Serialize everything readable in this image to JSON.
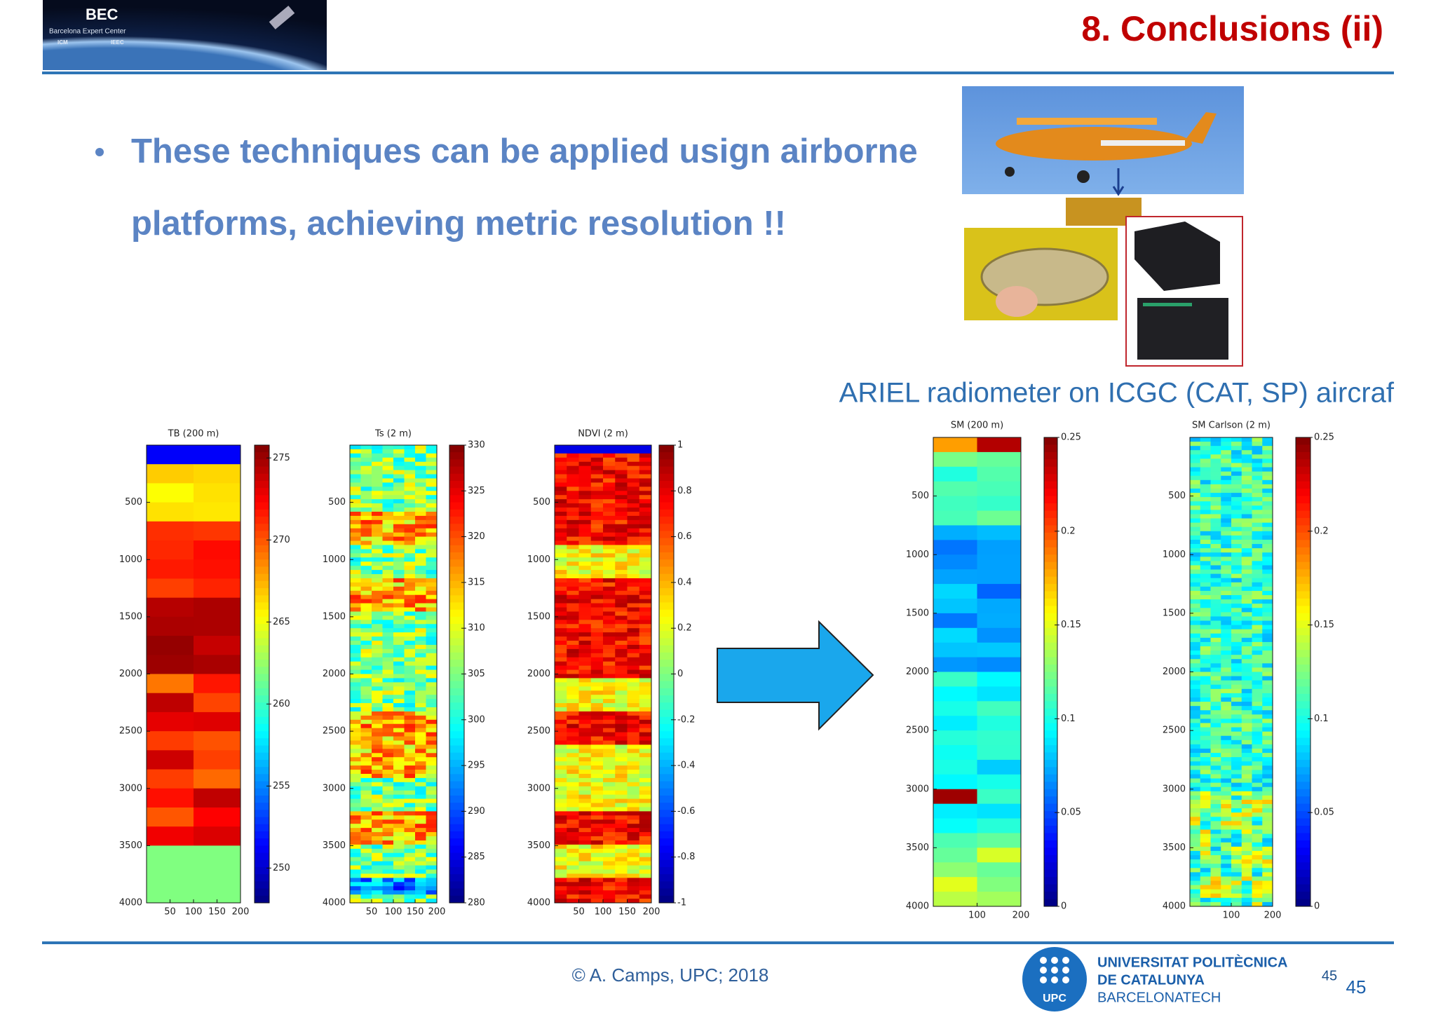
{
  "header": {
    "logo": {
      "title": "BEC",
      "subtitle": "Barcelona Expert Center",
      "partners": [
        "ICM",
        "IEEC"
      ]
    },
    "title": "8. Conclusions (ii)"
  },
  "bullet": {
    "lines": [
      "These techniques can be applied usign airborne",
      "platforms, achieving metric resolution !!"
    ]
  },
  "photos": {
    "caption": "ARIEL radiometer on ICGC (CAT, SP) aircraf"
  },
  "panels": [
    {
      "title": "TB (200 m)",
      "yticks": [
        500,
        1000,
        1500,
        2000,
        2500,
        3000,
        3500,
        4000
      ],
      "xticks": [
        50,
        100,
        150,
        200
      ],
      "colorbar_ticks": [
        250,
        255,
        260,
        265,
        270,
        275
      ]
    },
    {
      "title": "Ts (2 m)",
      "yticks": [
        500,
        1000,
        1500,
        2000,
        2500,
        3000,
        3500,
        4000
      ],
      "xticks": [
        50,
        100,
        150,
        200
      ],
      "colorbar_ticks": [
        280,
        285,
        290,
        295,
        300,
        305,
        310,
        315,
        320,
        325,
        330
      ]
    },
    {
      "title": "NDVI (2 m)",
      "yticks": [
        500,
        1000,
        1500,
        2000,
        2500,
        3000,
        3500,
        4000
      ],
      "xticks": [
        50,
        100,
        150,
        200
      ],
      "colorbar_ticks": [
        -1,
        -0.8,
        -0.6,
        -0.4,
        -0.2,
        0,
        0.2,
        0.4,
        0.6,
        0.8,
        1
      ]
    },
    {
      "title": "SM (200 m)",
      "yticks": [
        500,
        1000,
        1500,
        2000,
        2500,
        3000,
        3500,
        4000
      ],
      "xticks": [
        100,
        200
      ],
      "colorbar_ticks": [
        0,
        0.05,
        0.1,
        0.15,
        0.2,
        0.25
      ]
    },
    {
      "title": "SM Carlson (2 m)",
      "yticks": [
        500,
        1000,
        1500,
        2000,
        2500,
        3000,
        3500,
        4000
      ],
      "xticks": [
        100,
        200
      ],
      "colorbar_ticks": [
        0,
        0.05,
        0.1,
        0.15,
        0.2,
        0.25
      ]
    }
  ],
  "footer": {
    "copyright": "© A. Camps, UPC; 2018",
    "logo_text": "UPC",
    "university": [
      "UNIVERSITAT POLITÈCNICA",
      "DE CATALUNYA",
      "BARCELONATECH"
    ],
    "page_numbers": [
      45,
      45
    ]
  }
}
